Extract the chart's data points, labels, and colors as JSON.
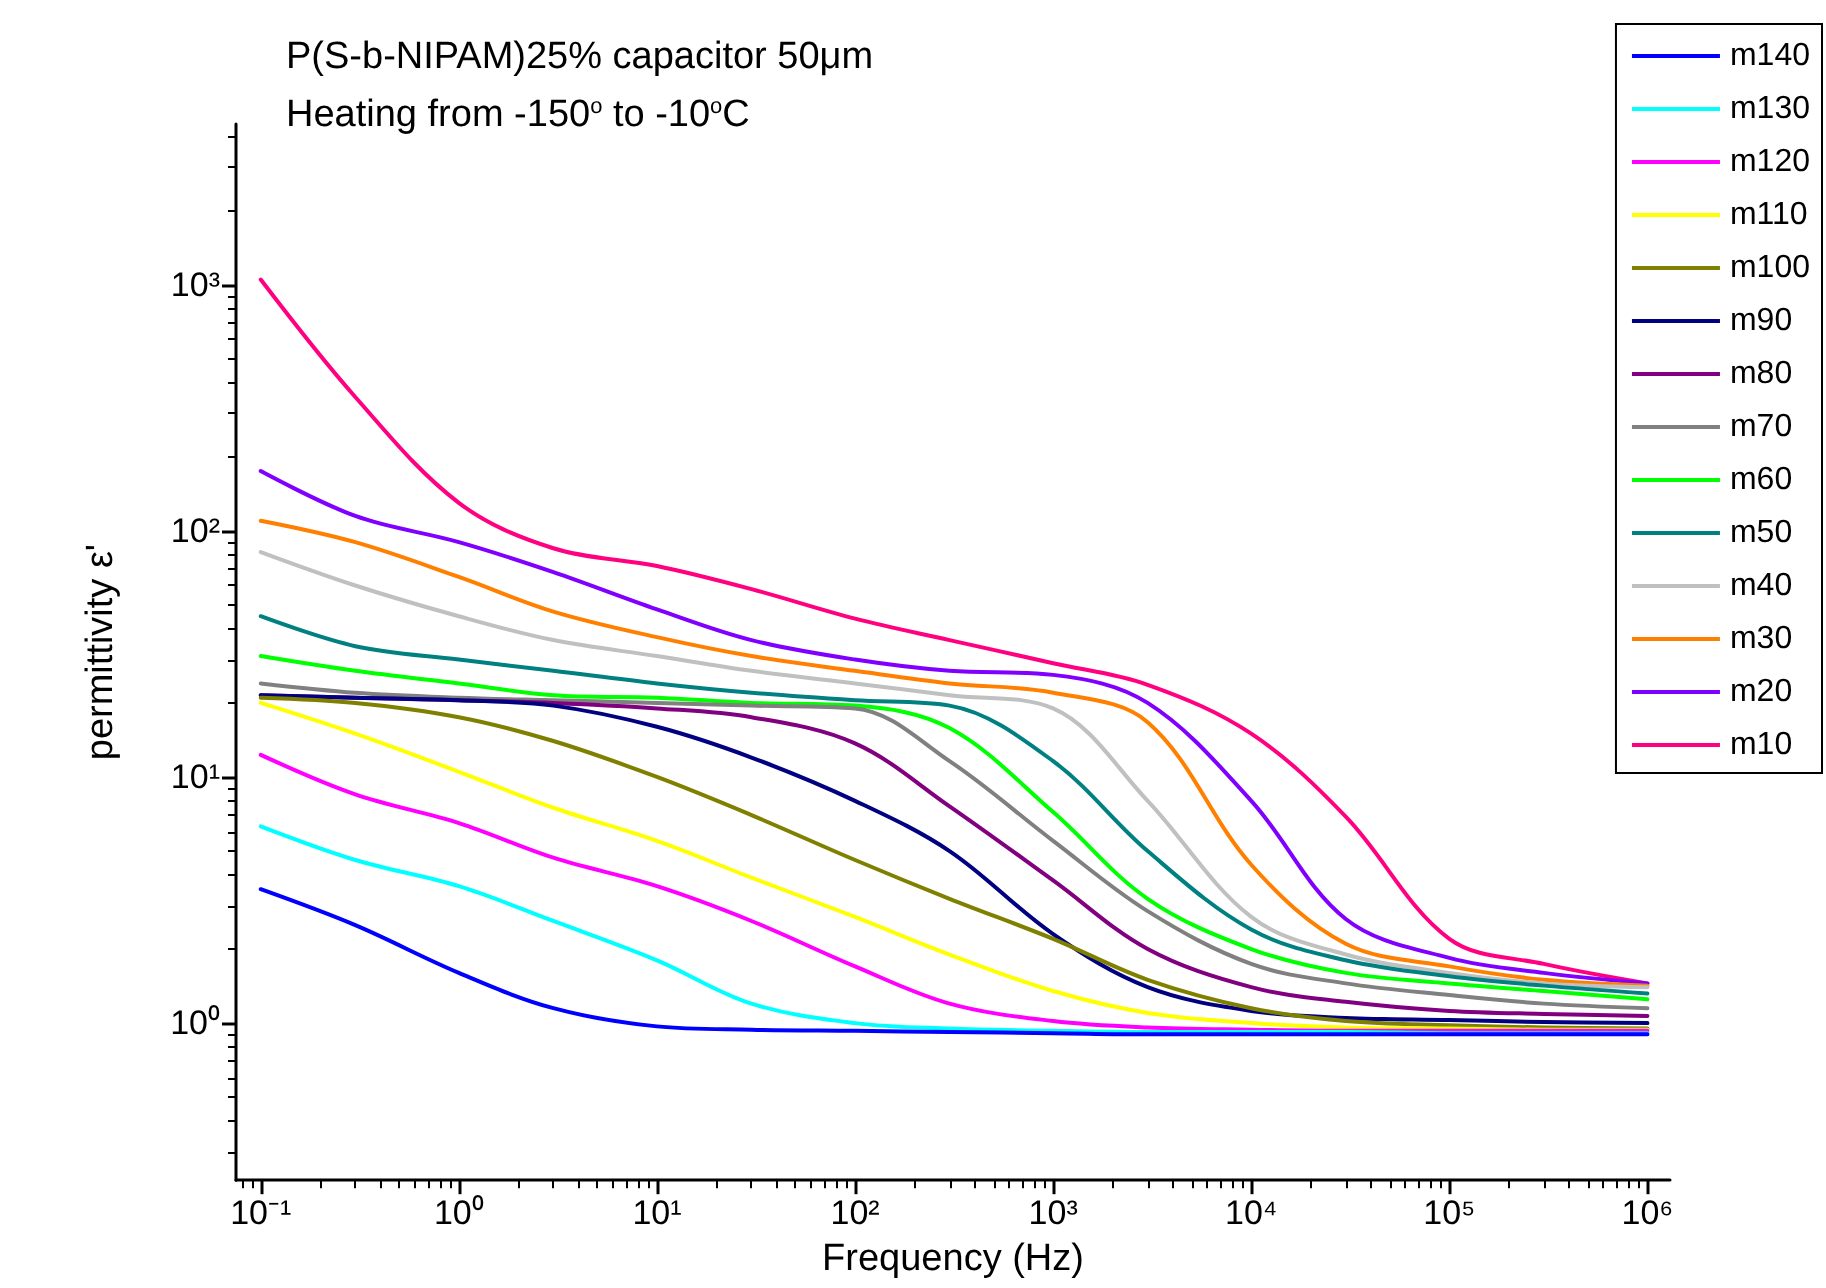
{
  "chart_data": {
    "type": "line",
    "title": "P(S-b-NIPAM)25% capacitor 50μm",
    "subtitle": "Heating from -150$^{o}$ to -10$^{o}$C",
    "xlabel": "Frequency (Hz)",
    "ylabel": "permittivity ε'",
    "log": "xy",
    "grid": false,
    "legend": "top right",
    "marker": "none",
    "line_style": "solid",
    "x": [
      0.1,
      0.3,
      1,
      3,
      10,
      30,
      100,
      300,
      1000,
      3000,
      10000,
      30000,
      100000,
      300000,
      1000000
    ],
    "xlim": [
      0.075,
      1300000
    ],
    "ylim": [
      0.23,
      4500
    ],
    "xticks": [
      {
        "value": 0.1,
        "label": "10⁻¹"
      },
      {
        "value": 1,
        "label": "10⁰"
      },
      {
        "value": 10,
        "label": "10¹"
      },
      {
        "value": 100,
        "label": "10²"
      },
      {
        "value": 1000,
        "label": "10³"
      },
      {
        "value": 10000,
        "label": "10⁴"
      },
      {
        "value": 100000,
        "label": "10⁵"
      },
      {
        "value": 1000000,
        "label": "10⁶"
      }
    ],
    "yticks": [
      {
        "value": 1,
        "label": "10⁰"
      },
      {
        "value": 10,
        "label": "10¹"
      },
      {
        "value": 100,
        "label": "10²"
      },
      {
        "value": 1000,
        "label": "10³"
      }
    ],
    "series": [
      {
        "name": "m140",
        "color": "#0000ff",
        "values": [
          3.5,
          2.5,
          1.6,
          1.15,
          0.97,
          0.94,
          0.93,
          0.92,
          0.91,
          0.9,
          0.9,
          0.9,
          0.9,
          0.9,
          0.9
        ]
      },
      {
        "name": "m130",
        "color": "#00ffff",
        "values": [
          6.3,
          4.6,
          3.6,
          2.6,
          1.8,
          1.2,
          1.0,
          0.95,
          0.93,
          0.92,
          0.92,
          0.92,
          0.91,
          0.91,
          0.91
        ]
      },
      {
        "name": "m120",
        "color": "#ff00ff",
        "values": [
          12.3,
          8.5,
          6.5,
          4.7,
          3.6,
          2.6,
          1.7,
          1.2,
          1.02,
          0.96,
          0.94,
          0.93,
          0.93,
          0.93,
          0.93
        ]
      },
      {
        "name": "m110",
        "color": "#ffff00",
        "values": [
          20,
          15,
          10.5,
          7.5,
          5.5,
          3.9,
          2.7,
          1.9,
          1.35,
          1.1,
          1.0,
          0.96,
          0.95,
          0.94,
          0.94
        ]
      },
      {
        "name": "m100",
        "color": "#808000",
        "values": [
          21,
          20,
          17.5,
          14,
          10,
          7,
          4.6,
          3.2,
          2.2,
          1.5,
          1.15,
          1.02,
          0.98,
          0.96,
          0.95
        ]
      },
      {
        "name": "m90",
        "color": "#000080",
        "values": [
          21.5,
          21,
          20.5,
          19.5,
          16,
          12,
          8,
          5,
          2.3,
          1.4,
          1.12,
          1.05,
          1.03,
          1.01,
          1.0
        ]
      },
      {
        "name": "m80",
        "color": "#800080",
        "values": [
          21.5,
          21,
          20.5,
          20,
          19,
          17.5,
          13.7,
          7.6,
          3.8,
          2.0,
          1.4,
          1.22,
          1.12,
          1.09,
          1.07
        ]
      },
      {
        "name": "m70",
        "color": "#808080",
        "values": [
          24,
          22,
          21,
          20.5,
          20,
          19.5,
          19,
          11.6,
          5.5,
          2.85,
          1.74,
          1.45,
          1.3,
          1.2,
          1.15
        ]
      },
      {
        "name": "m60",
        "color": "#00ff00",
        "values": [
          31,
          27,
          24,
          21.5,
          21,
          20,
          19.5,
          15.8,
          7.2,
          3.2,
          2.0,
          1.6,
          1.45,
          1.35,
          1.25
        ]
      },
      {
        "name": "m50",
        "color": "#008080",
        "values": [
          45,
          34,
          30,
          27,
          24,
          22,
          20.5,
          19.5,
          11.6,
          5,
          2.4,
          1.8,
          1.55,
          1.42,
          1.32
        ]
      },
      {
        "name": "m40",
        "color": "#c0c0c0",
        "values": [
          82,
          60,
          45,
          36,
          31,
          27,
          24,
          21.5,
          19,
          8,
          2.7,
          1.9,
          1.6,
          1.45,
          1.4
        ]
      },
      {
        "name": "m30",
        "color": "#ff8000",
        "values": [
          110,
          90,
          65,
          47,
          37,
          31,
          27,
          24,
          22,
          16.7,
          4.4,
          2.1,
          1.7,
          1.5,
          1.42
        ]
      },
      {
        "name": "m20",
        "color": "#8000ff",
        "values": [
          175,
          115,
          90,
          68,
          48,
          36,
          30,
          27,
          26,
          20,
          8,
          2.65,
          1.84,
          1.6,
          1.45
        ]
      },
      {
        "name": "m10",
        "color": "#ff0080",
        "values": [
          1050,
          350,
          130,
          85,
          72,
          58,
          44,
          36,
          29,
          23.7,
          15,
          6.9,
          2.2,
          1.74,
          1.45
        ]
      }
    ]
  }
}
